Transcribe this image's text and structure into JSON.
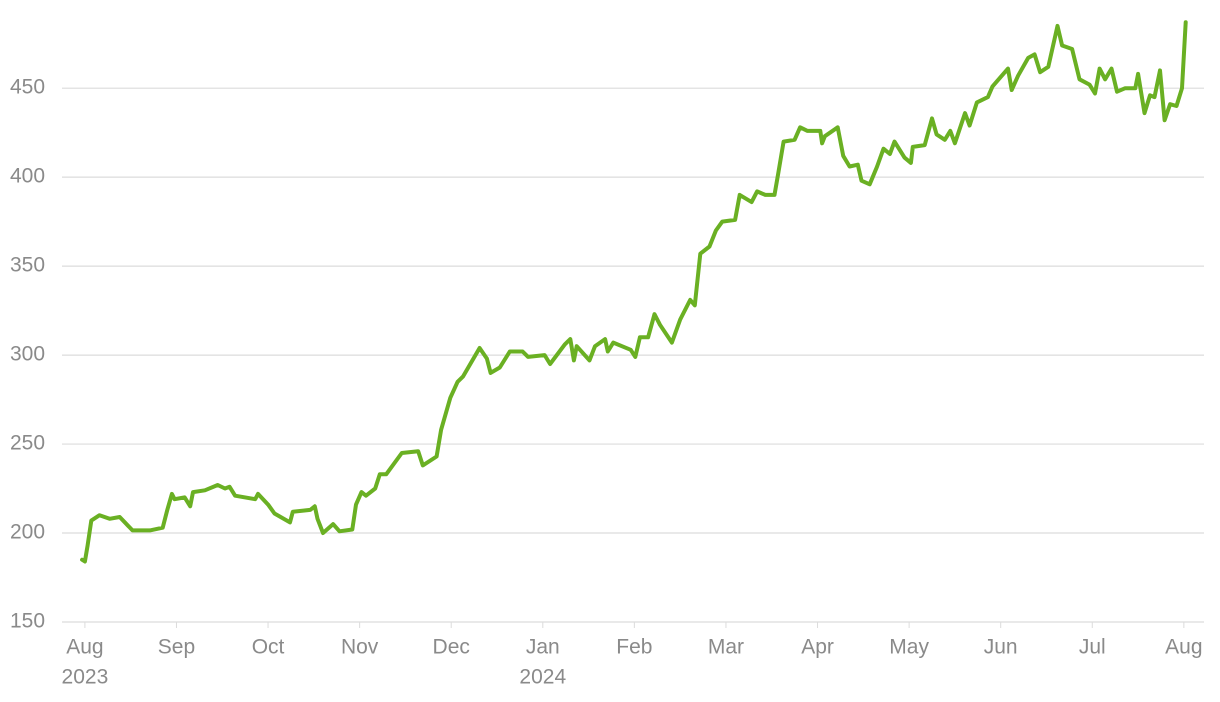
{
  "chart_data": {
    "type": "line",
    "x": [
      -0.03,
      0,
      0.03,
      0.07,
      0.16,
      0.27,
      0.38,
      0.52,
      0.71,
      0.85,
      0.9,
      0.95,
      0.98,
      1.09,
      1.15,
      1.18,
      1.31,
      1.45,
      1.53,
      1.58,
      1.64,
      1.86,
      1.89,
      2.0,
      2.07,
      2.24,
      2.27,
      2.46,
      2.51,
      2.54,
      2.6,
      2.71,
      2.78,
      2.92,
      2.96,
      3.02,
      3.07,
      3.17,
      3.22,
      3.29,
      3.46,
      3.64,
      3.69,
      3.84,
      3.89,
      3.99,
      4.07,
      4.13,
      4.31,
      4.39,
      4.43,
      4.53,
      4.64,
      4.78,
      4.84,
      5.02,
      5.08,
      5.24,
      5.3,
      5.34,
      5.37,
      5.51,
      5.57,
      5.68,
      5.71,
      5.77,
      5.96,
      6.01,
      6.06,
      6.15,
      6.22,
      6.28,
      6.41,
      6.5,
      6.61,
      6.66,
      6.72,
      6.82,
      6.89,
      6.96,
      7.1,
      7.15,
      7.28,
      7.34,
      7.43,
      7.53,
      7.57,
      7.63,
      7.75,
      7.81,
      7.89,
      8.03,
      8.05,
      8.08,
      8.22,
      8.28,
      8.35,
      8.44,
      8.48,
      8.57,
      8.65,
      8.72,
      8.79,
      8.84,
      8.95,
      9.02,
      9.04,
      9.17,
      9.25,
      9.3,
      9.39,
      9.45,
      9.5,
      9.61,
      9.66,
      9.74,
      9.86,
      9.91,
      10.08,
      10.12,
      10.19,
      10.3,
      10.37,
      10.43,
      10.52,
      10.62,
      10.67,
      10.78,
      10.86,
      10.97,
      11.03,
      11.08,
      11.14,
      11.21,
      11.27,
      11.36,
      11.47,
      11.5,
      11.57,
      11.63,
      11.68,
      11.74,
      11.79,
      11.85,
      11.92,
      11.98,
      12.02
    ],
    "series": [
      {
        "color": "#6ab023",
        "values": [
          185,
          184,
          193,
          207,
          210,
          208,
          209,
          201.5,
          201.5,
          203,
          213,
          222,
          219,
          220,
          215,
          223,
          224,
          227,
          225,
          226,
          221,
          219,
          222,
          216,
          211,
          206,
          212,
          213,
          215,
          208,
          200,
          205,
          201,
          202,
          216,
          223,
          221,
          225,
          233,
          233,
          245,
          246,
          238,
          243,
          258,
          276,
          285,
          288,
          304,
          298,
          290,
          293,
          302,
          302,
          299,
          300,
          295,
          306,
          309,
          297,
          305,
          297,
          305,
          309,
          302,
          307,
          303,
          299,
          310,
          310,
          323,
          317,
          307,
          320,
          331,
          328,
          357,
          361,
          370,
          375,
          376,
          390,
          386,
          392,
          390,
          390,
          402,
          420,
          421,
          428,
          426,
          426,
          419,
          423,
          428,
          412,
          406,
          407,
          398,
          396,
          406,
          416,
          413,
          420,
          411,
          408,
          417,
          418,
          433,
          424,
          421,
          426,
          419,
          436,
          429,
          442,
          445,
          451,
          461,
          449,
          457,
          467,
          469,
          459,
          462,
          485,
          474,
          472,
          455,
          452,
          447,
          461,
          455,
          461,
          448,
          450,
          450,
          458,
          436,
          446,
          445,
          460,
          432,
          441,
          440,
          450,
          487
        ]
      }
    ],
    "xlim": [
      -0.25,
      12.22
    ],
    "xticks": [
      {
        "value": 0,
        "label": "Aug"
      },
      {
        "value": 1,
        "label": "Sep"
      },
      {
        "value": 2,
        "label": "Oct"
      },
      {
        "value": 3,
        "label": "Nov"
      },
      {
        "value": 4,
        "label": "Dec"
      },
      {
        "value": 5,
        "label": "Jan"
      },
      {
        "value": 6,
        "label": "Feb"
      },
      {
        "value": 7,
        "label": "Mar"
      },
      {
        "value": 8,
        "label": "Apr"
      },
      {
        "value": 9,
        "label": "May"
      },
      {
        "value": 10,
        "label": "Jun"
      },
      {
        "value": 11,
        "label": "Jul"
      },
      {
        "value": 12,
        "label": "Aug"
      }
    ],
    "x_sublabels": [
      {
        "value": 0,
        "label": "2023"
      },
      {
        "value": 5,
        "label": "2024"
      }
    ],
    "ylim": [
      150,
      490
    ],
    "yticks": [
      150,
      200,
      250,
      300,
      350,
      400,
      450
    ],
    "grid": true
  }
}
